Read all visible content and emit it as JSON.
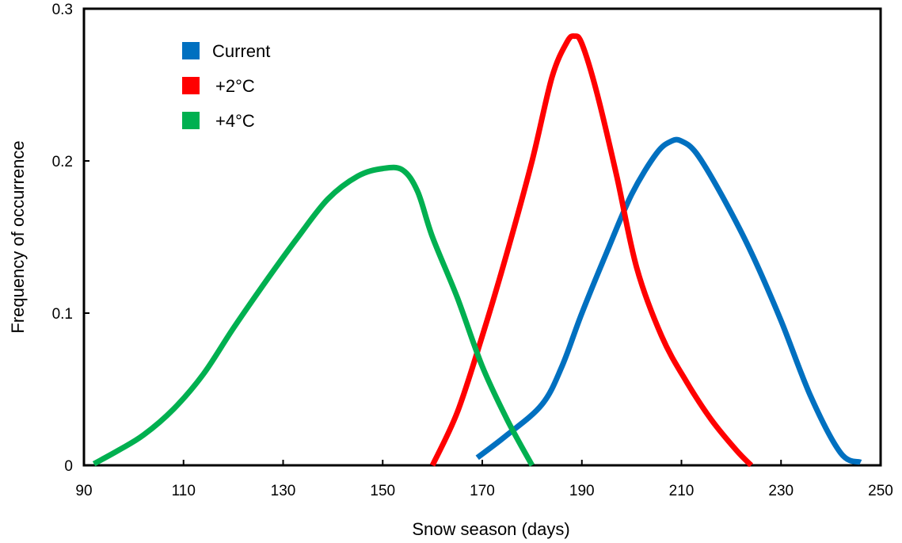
{
  "chart_data": {
    "type": "line",
    "title": "",
    "xlabel": "Snow season (days)",
    "ylabel": "Frequency of occurrence",
    "xlim": [
      90,
      250
    ],
    "ylim": [
      0,
      0.3
    ],
    "x_ticks": [
      "90",
      "110",
      "130",
      "150",
      "170",
      "190",
      "210",
      "230",
      "250"
    ],
    "y_ticks": [
      "0",
      "0.1",
      "0.2",
      "0.3"
    ],
    "grid": false,
    "legend_position": "top-left",
    "series": [
      {
        "name": "Current",
        "color": "#0070C0",
        "x": [
          169,
          175,
          182,
          186,
          190,
          195,
          200,
          205,
          208,
          210,
          213,
          218,
          224,
          230,
          236,
          242,
          246
        ],
        "y": [
          0.005,
          0.02,
          0.04,
          0.065,
          0.1,
          0.14,
          0.178,
          0.205,
          0.213,
          0.213,
          0.205,
          0.178,
          0.14,
          0.095,
          0.045,
          0.008,
          0.002
        ]
      },
      {
        "name": "+2°C",
        "color": "#FF0000",
        "x": [
          160,
          165,
          170,
          175,
          180,
          184,
          187,
          188.5,
          190,
          193,
          197,
          201,
          206,
          211,
          216,
          221,
          224
        ],
        "y": [
          0.0,
          0.035,
          0.085,
          0.14,
          0.2,
          0.255,
          0.278,
          0.282,
          0.277,
          0.245,
          0.19,
          0.13,
          0.085,
          0.055,
          0.03,
          0.01,
          0.0
        ]
      },
      {
        "name": "+4°C",
        "color": "#00B050",
        "x": [
          92,
          97,
          102,
          108,
          114,
          120,
          127,
          133,
          139,
          145,
          150,
          154,
          157,
          160,
          165,
          170,
          175,
          180
        ],
        "y": [
          0.001,
          0.01,
          0.02,
          0.037,
          0.06,
          0.09,
          0.123,
          0.15,
          0.175,
          0.19,
          0.195,
          0.194,
          0.18,
          0.15,
          0.11,
          0.065,
          0.03,
          0.0
        ]
      }
    ]
  }
}
